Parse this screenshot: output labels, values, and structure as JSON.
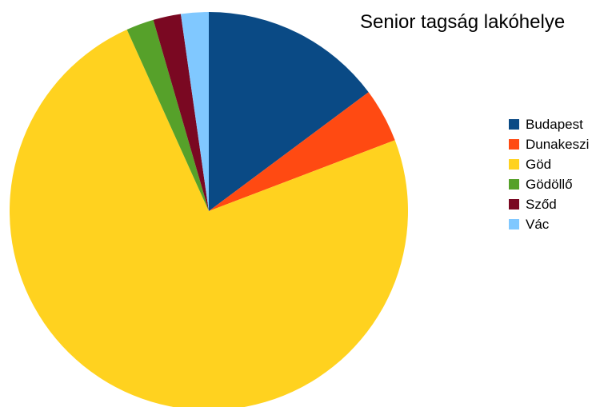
{
  "chart_data": {
    "type": "pie",
    "title": "Senior tagság lakóhelye",
    "legend_position": "right",
    "slices": [
      {
        "label": "Budapest",
        "value": 14.5,
        "color": "#0a4a85"
      },
      {
        "label": "Dunakeszi",
        "value": 4.3,
        "color": "#ff4a12"
      },
      {
        "label": "Göd",
        "value": 72.5,
        "color": "#ffd21f"
      },
      {
        "label": "Gödöllő",
        "value": 2.2,
        "color": "#56a12a"
      },
      {
        "label": "Sződ",
        "value": 2.2,
        "color": "#7a0822"
      },
      {
        "label": "Vác",
        "value": 2.2,
        "color": "#80c8ff"
      }
    ]
  }
}
